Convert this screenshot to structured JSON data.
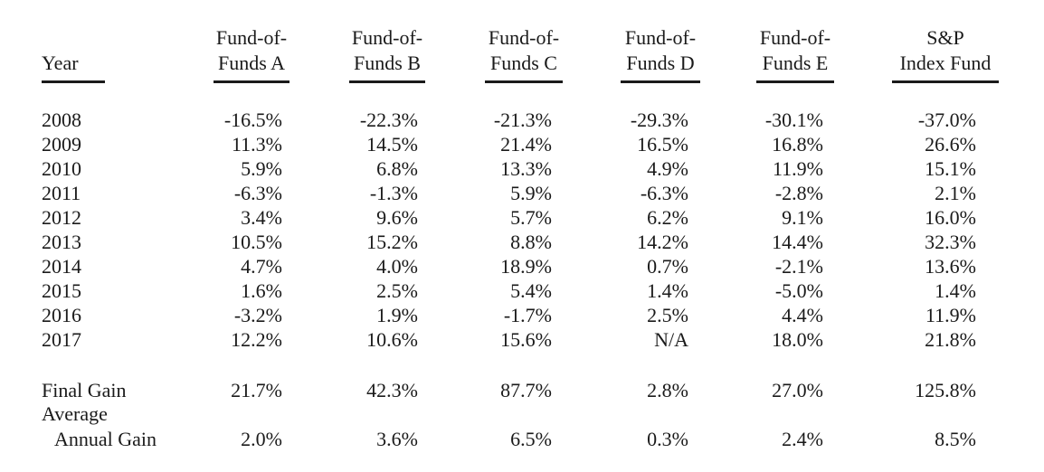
{
  "headers": {
    "year": {
      "line1": "",
      "line2": "Year"
    },
    "cols": [
      {
        "line1": "Fund-of-",
        "line2": "Funds A"
      },
      {
        "line1": "Fund-of-",
        "line2": "Funds B"
      },
      {
        "line1": "Fund-of-",
        "line2": "Funds C"
      },
      {
        "line1": "Fund-of-",
        "line2": "Funds D"
      },
      {
        "line1": "Fund-of-",
        "line2": "Funds E"
      },
      {
        "line1": "S&P",
        "line2": "Index Fund"
      }
    ]
  },
  "rows": [
    {
      "year": "2008",
      "values": [
        "-16.5%",
        "-22.3%",
        "-21.3%",
        "-29.3%",
        "-30.1%",
        "-37.0%"
      ]
    },
    {
      "year": "2009",
      "values": [
        "11.3%",
        "14.5%",
        "21.4%",
        "16.5%",
        "16.8%",
        "26.6%"
      ]
    },
    {
      "year": "2010",
      "values": [
        "5.9%",
        "6.8%",
        "13.3%",
        "4.9%",
        "11.9%",
        "15.1%"
      ]
    },
    {
      "year": "2011",
      "values": [
        "-6.3%",
        "-1.3%",
        "5.9%",
        "-6.3%",
        "-2.8%",
        "2.1%"
      ]
    },
    {
      "year": "2012",
      "values": [
        "3.4%",
        "9.6%",
        "5.7%",
        "6.2%",
        "9.1%",
        "16.0%"
      ]
    },
    {
      "year": "2013",
      "values": [
        "10.5%",
        "15.2%",
        "8.8%",
        "14.2%",
        "14.4%",
        "32.3%"
      ]
    },
    {
      "year": "2014",
      "values": [
        "4.7%",
        "4.0%",
        "18.9%",
        "0.7%",
        "-2.1%",
        "13.6%"
      ]
    },
    {
      "year": "2015",
      "values": [
        "1.6%",
        "2.5%",
        "5.4%",
        "1.4%",
        "-5.0%",
        "1.4%"
      ]
    },
    {
      "year": "2016",
      "values": [
        "-3.2%",
        "1.9%",
        "-1.7%",
        "2.5%",
        "4.4%",
        "11.9%"
      ]
    },
    {
      "year": "2017",
      "values": [
        "12.2%",
        "10.6%",
        "15.6%",
        "N/A",
        "18.0%",
        "21.8%"
      ]
    }
  ],
  "summary": {
    "final_gain": {
      "label": "Final Gain",
      "values": [
        "21.7%",
        "42.3%",
        "87.7%",
        "2.8%",
        "27.0%",
        "125.8%"
      ]
    },
    "average_annual_gain": {
      "label_line1": "Average",
      "label_line2": "Annual Gain",
      "values": [
        "2.0%",
        "3.6%",
        "6.5%",
        "0.3%",
        "2.4%",
        "8.5%"
      ]
    }
  }
}
